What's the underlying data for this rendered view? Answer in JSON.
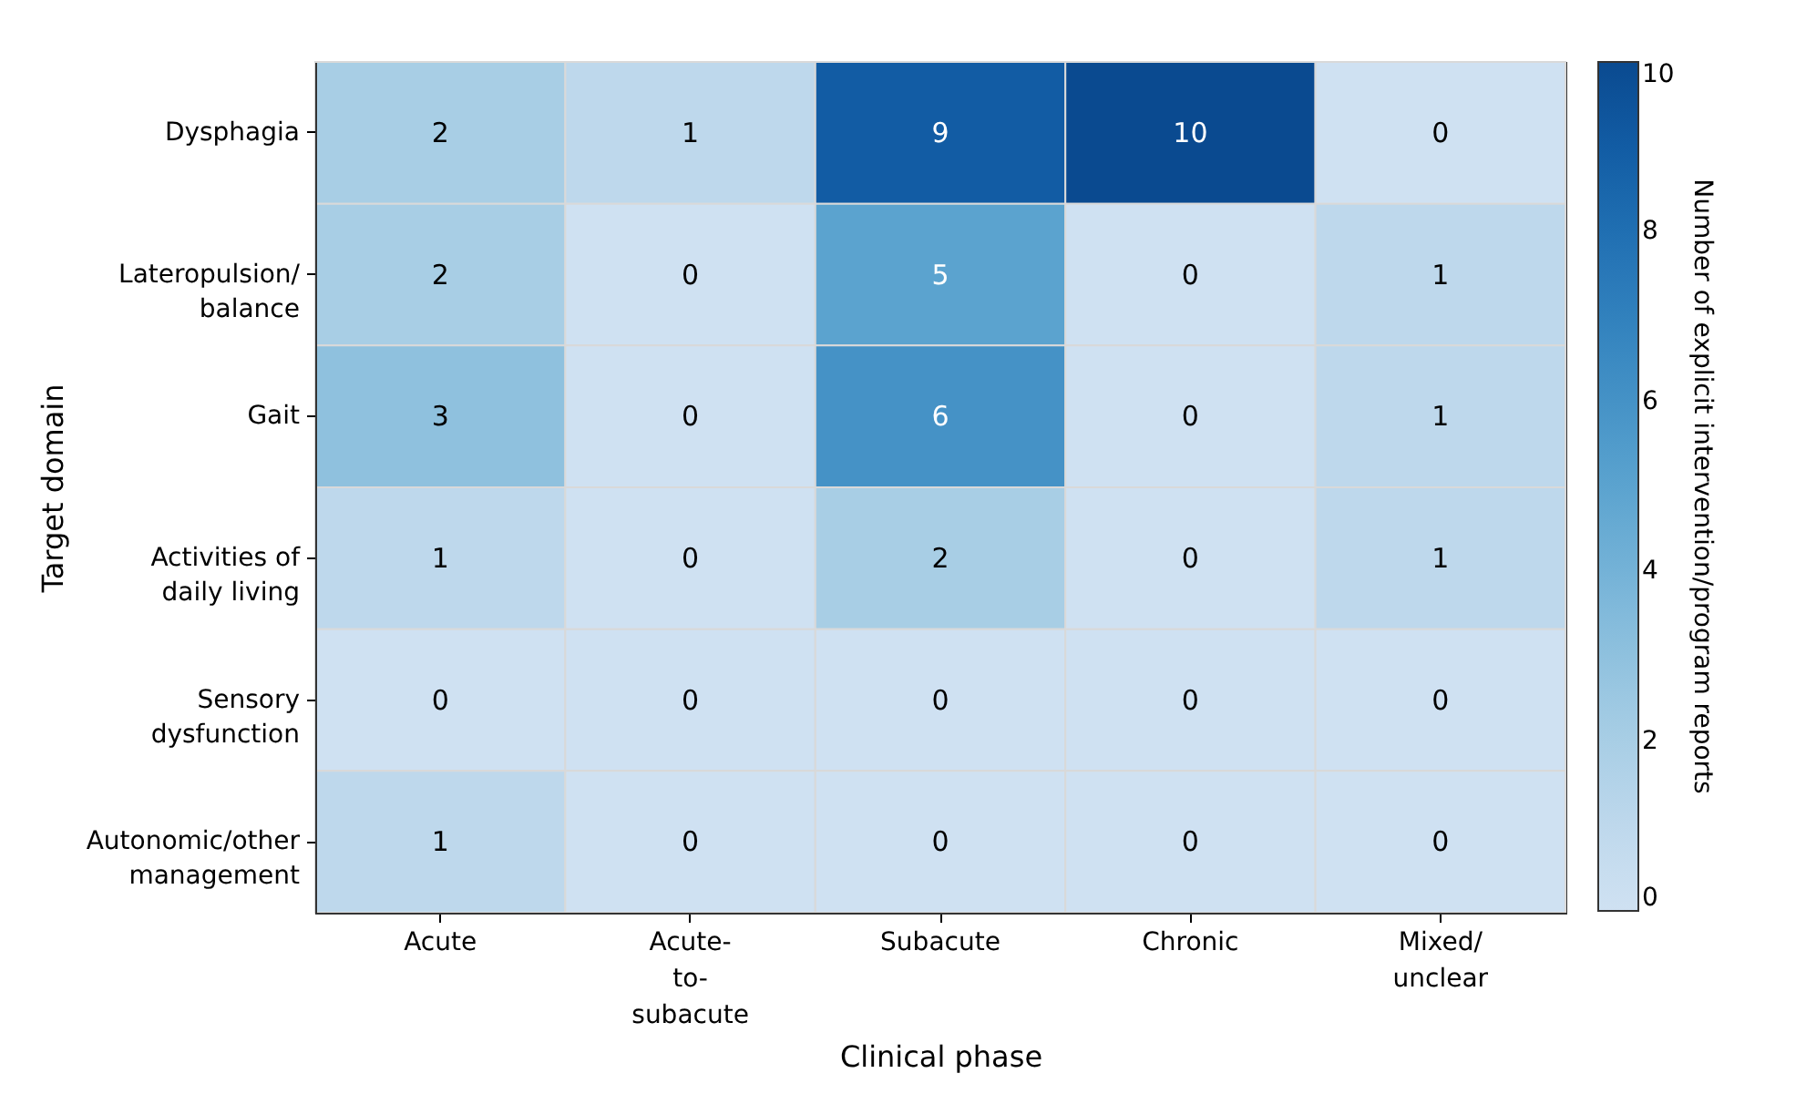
{
  "chart_data": {
    "type": "heatmap",
    "xlabel": "Clinical phase",
    "ylabel": "Target domain",
    "clabel": "Number of explicit intervention/program reports",
    "categories": [
      "Acute",
      "Acute-\nto-\nsubacute",
      "Subacute",
      "Chronic",
      "Mixed/\nunclear"
    ],
    "y_categories": [
      "Dysphagia",
      "Lateropulsion/\nbalance",
      "Gait",
      "Activities of\ndaily living",
      "Sensory\ndysfunction",
      "Autonomic/other\nmanagement"
    ],
    "cells": [
      [
        2,
        1,
        9,
        10,
        0
      ],
      [
        2,
        0,
        5,
        0,
        1
      ],
      [
        3,
        0,
        6,
        0,
        1
      ],
      [
        1,
        0,
        2,
        0,
        1
      ],
      [
        0,
        0,
        0,
        0,
        0
      ],
      [
        1,
        0,
        0,
        0,
        0
      ]
    ],
    "clim": [
      0,
      10
    ],
    "cticks": [
      0,
      2,
      4,
      6,
      8,
      10
    ],
    "data_labels": true
  }
}
